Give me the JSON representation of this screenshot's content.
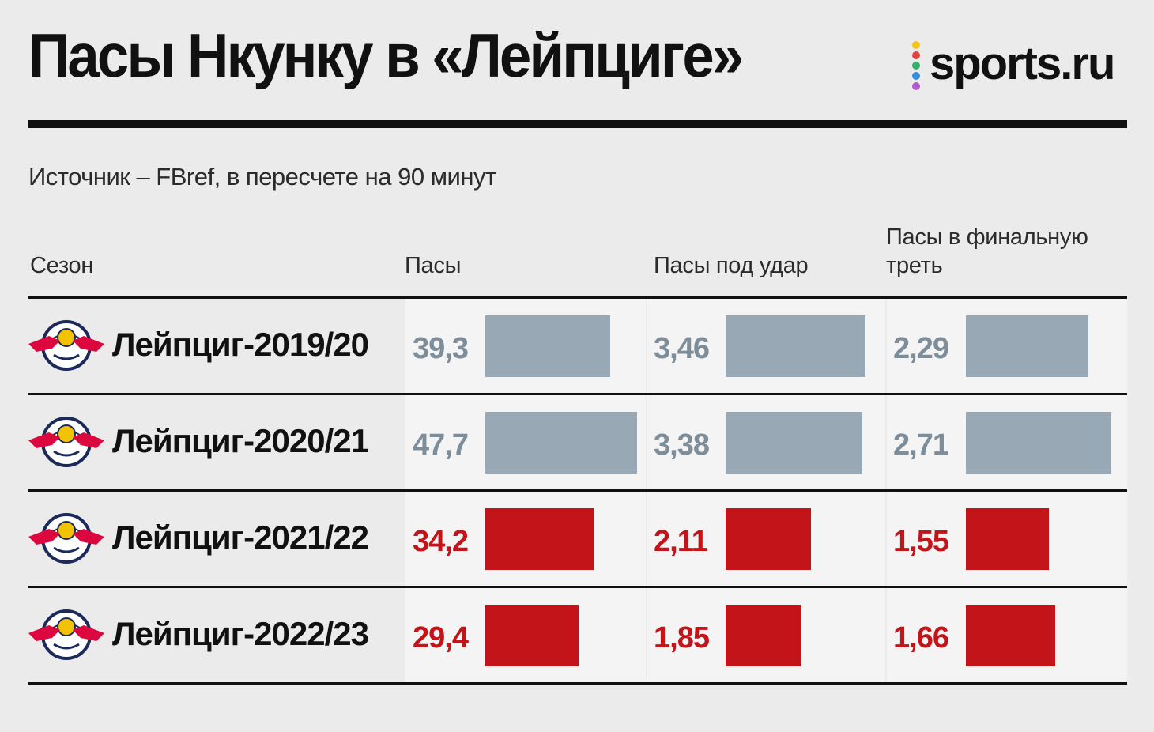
{
  "title": "Пасы Нкунку в «Лейпциге»",
  "brand": {
    "name": "sports.ru",
    "dot_colors": [
      "#f5c518",
      "#e8403a",
      "#2fb36b",
      "#2f8fe0",
      "#b25ad6"
    ]
  },
  "source": "Источник – FBref, в пересчете на 90 минут",
  "colors": {
    "highlight": "#c3141a",
    "muted": "#98a8b4",
    "muted_text": "#7d8d99"
  },
  "chart_data": {
    "type": "table",
    "columns": [
      "Сезон",
      "Пасы",
      "Пасы под удар",
      "Пасы в финальную треть"
    ],
    "header_lines": {
      "final_third": [
        "Пасы в финальную",
        "треть"
      ]
    },
    "rows": [
      {
        "season": "Лейпциг-2019/20",
        "passes": "39,3",
        "shot_passes": "3,46",
        "final_third": "2,29",
        "highlight": false
      },
      {
        "season": "Лейпциг-2020/21",
        "passes": "47,7",
        "shot_passes": "3,38",
        "final_third": "2,71",
        "highlight": false
      },
      {
        "season": "Лейпциг-2021/22",
        "passes": "34,2",
        "shot_passes": "2,11",
        "final_third": "1,55",
        "highlight": true
      },
      {
        "season": "Лейпциг-2022/23",
        "passes": "29,4",
        "shot_passes": "1,85",
        "final_third": "1,66",
        "highlight": true
      }
    ],
    "series": [
      {
        "name": "Пасы",
        "values": [
          39.3,
          47.7,
          34.2,
          29.4
        ]
      },
      {
        "name": "Пасы под удар",
        "values": [
          3.46,
          3.38,
          2.11,
          1.85
        ]
      },
      {
        "name": "Пасы в финальную треть",
        "values": [
          2.29,
          2.71,
          1.55,
          1.66
        ]
      }
    ]
  }
}
